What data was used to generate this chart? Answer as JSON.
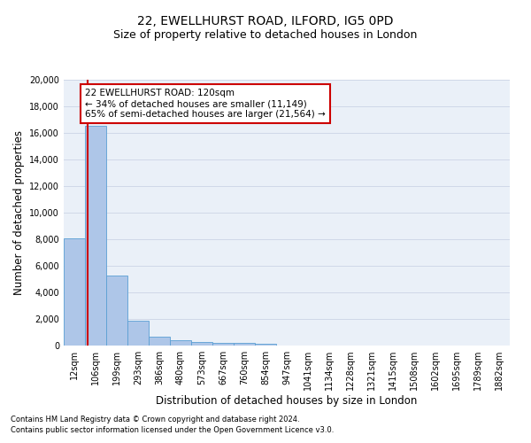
{
  "title1": "22, EWELLHURST ROAD, ILFORD, IG5 0PD",
  "title2": "Size of property relative to detached houses in London",
  "xlabel": "Distribution of detached houses by size in London",
  "ylabel": "Number of detached properties",
  "categories": [
    "12sqm",
    "106sqm",
    "199sqm",
    "293sqm",
    "386sqm",
    "480sqm",
    "573sqm",
    "667sqm",
    "760sqm",
    "854sqm",
    "947sqm",
    "1041sqm",
    "1134sqm",
    "1228sqm",
    "1321sqm",
    "1415sqm",
    "1508sqm",
    "1602sqm",
    "1695sqm",
    "1789sqm",
    "1882sqm"
  ],
  "values": [
    8100,
    16500,
    5300,
    1850,
    700,
    380,
    280,
    220,
    210,
    160,
    0,
    0,
    0,
    0,
    0,
    0,
    0,
    0,
    0,
    0,
    0
  ],
  "bar_color": "#aec6e8",
  "bar_edge_color": "#5a9fd4",
  "annotation_text": "22 EWELLHURST ROAD: 120sqm\n← 34% of detached houses are smaller (11,149)\n65% of semi-detached houses are larger (21,564) →",
  "annotation_box_color": "#ffffff",
  "annotation_box_edge": "#cc0000",
  "red_line_color": "#cc0000",
  "footer1": "Contains HM Land Registry data © Crown copyright and database right 2024.",
  "footer2": "Contains public sector information licensed under the Open Government Licence v3.0.",
  "ylim": [
    0,
    20000
  ],
  "yticks": [
    0,
    2000,
    4000,
    6000,
    8000,
    10000,
    12000,
    14000,
    16000,
    18000,
    20000
  ],
  "grid_color": "#d0d8e8",
  "background_color": "#eaf0f8",
  "title1_fontsize": 10,
  "title2_fontsize": 9,
  "xlabel_fontsize": 8.5,
  "ylabel_fontsize": 8.5,
  "tick_fontsize": 7,
  "annotation_fontsize": 7.5,
  "footer_fontsize": 6
}
